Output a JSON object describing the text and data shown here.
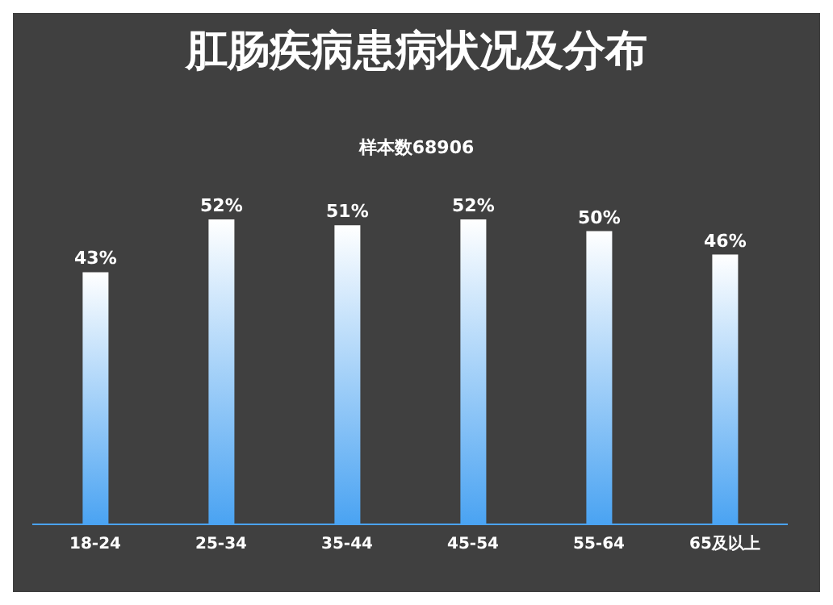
{
  "chart_data": {
    "type": "bar",
    "title": "肛肠疾病患病状况及分布",
    "subtitle": "样本数68906",
    "categories": [
      "18-24",
      "25-34",
      "35-44",
      "45-54",
      "55-64",
      "65及以上"
    ],
    "values": [
      43,
      52,
      51,
      52,
      50,
      46
    ],
    "value_labels": [
      "43%",
      "52%",
      "51%",
      "52%",
      "50%",
      "46%"
    ],
    "color": "#4aa3f2",
    "tick_labels": "x"
  }
}
